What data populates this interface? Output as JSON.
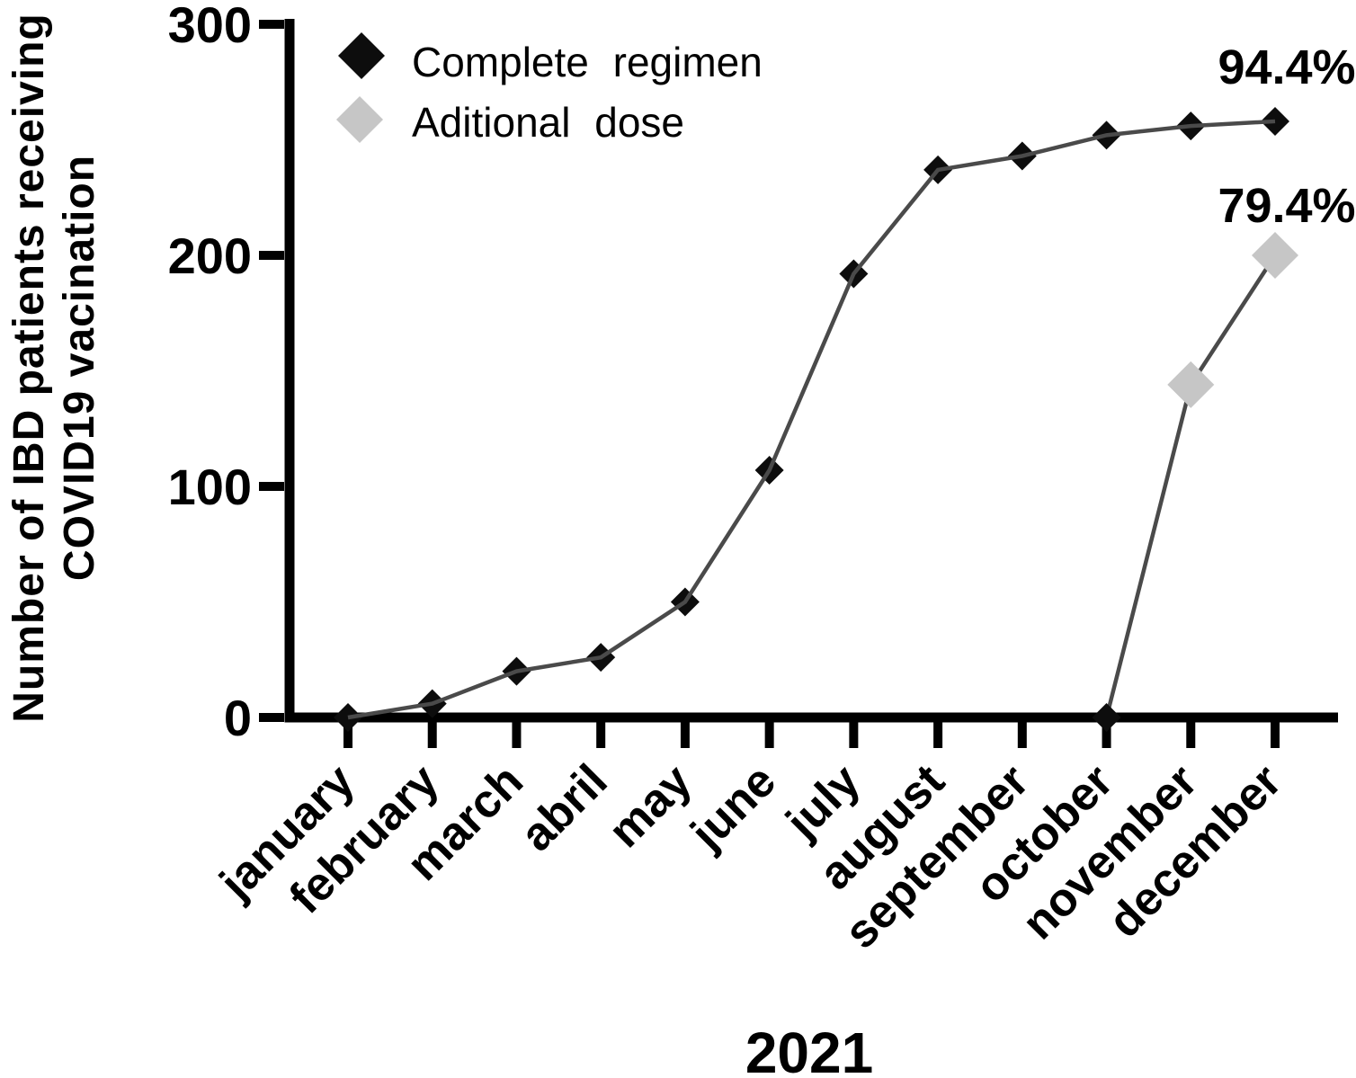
{
  "chart_data": {
    "type": "line",
    "title": "",
    "xlabel": "2021",
    "ylabel_line1": "Number of IBD patients receiving",
    "ylabel_line2": "COVID19 vacination",
    "categories": [
      "january",
      "february",
      "march",
      "abril",
      "may",
      "june",
      "july",
      "august",
      "september",
      "october",
      "november",
      "december"
    ],
    "yticks": [
      "0",
      "100",
      "200",
      "300"
    ],
    "ytick_values": [
      0,
      100,
      200,
      300
    ],
    "ylim": [
      0,
      300
    ],
    "grid": false,
    "legend_position": "top-left",
    "series": [
      {
        "name": "Complete regimen",
        "marker": "diamond",
        "marker_color": "#0d0d0d",
        "line_color": "#4a4a4a",
        "start_index": 0,
        "values": [
          0,
          6,
          20,
          26,
          50,
          107,
          192,
          237,
          243,
          252,
          256,
          258
        ],
        "end_label": "94.4%"
      },
      {
        "name": "Aditional dose",
        "marker": "diamond",
        "marker_color": "#c6c6c6",
        "line_color": "#4a4a4a",
        "start_index": 9,
        "values": [
          0,
          144,
          200
        ],
        "first_point_color": "#0d0d0d",
        "end_label": "79.4%"
      }
    ]
  },
  "colors": {
    "background": "#ffffff",
    "axis": "#000000",
    "text": "#000000",
    "series_line": "#4a4a4a",
    "complete_regimen_marker": "#0d0d0d",
    "aditional_dose_marker": "#c6c6c6"
  }
}
